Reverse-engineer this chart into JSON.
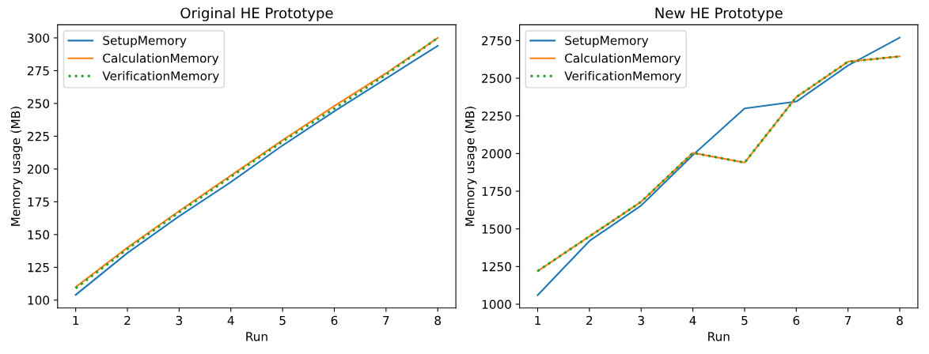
{
  "chart_data": [
    {
      "type": "line",
      "title": "Original HE Prototype",
      "xlabel": "Run",
      "ylabel": "Memory usage (MB)",
      "x": [
        1,
        2,
        3,
        4,
        5,
        6,
        7,
        8
      ],
      "xlim": [
        0.65,
        8.35
      ],
      "xticks": [
        1,
        2,
        3,
        4,
        5,
        6,
        7,
        8
      ],
      "ylim": [
        94,
        310
      ],
      "yticks": [
        100,
        125,
        150,
        175,
        200,
        225,
        250,
        275,
        300
      ],
      "legend": "top left",
      "grid": false,
      "series": [
        {
          "name": "SetupMemory",
          "color": "#1f77b4",
          "line_style": "solid",
          "values": [
            104,
            136,
            164,
            190,
            218,
            244,
            269,
            294
          ]
        },
        {
          "name": "CalculationMemory",
          "color": "#ff7f0e",
          "line_style": "solid",
          "values": [
            110,
            140,
            168,
            195,
            222,
            248,
            273,
            300
          ]
        },
        {
          "name": "VerificationMemory",
          "color": "#2ca02c",
          "line_style": "dotted",
          "values": [
            109,
            139,
            167,
            194,
            221,
            246,
            272,
            300
          ]
        }
      ]
    },
    {
      "type": "line",
      "title": "New HE Prototype",
      "xlabel": "Run",
      "ylabel": "Memory usage (MB)",
      "x": [
        1,
        2,
        3,
        4,
        5,
        6,
        7,
        8
      ],
      "xlim": [
        0.65,
        8.35
      ],
      "xticks": [
        1,
        2,
        3,
        4,
        5,
        6,
        7,
        8
      ],
      "ylim": [
        975,
        2855
      ],
      "yticks": [
        1000,
        1250,
        1500,
        1750,
        2000,
        2250,
        2500,
        2750
      ],
      "legend": "top left",
      "grid": false,
      "series": [
        {
          "name": "SetupMemory",
          "color": "#1f77b4",
          "line_style": "solid",
          "values": [
            1060,
            1420,
            1655,
            1990,
            2300,
            2345,
            2585,
            2770
          ]
        },
        {
          "name": "CalculationMemory",
          "color": "#ff7f0e",
          "line_style": "solid",
          "values": [
            1220,
            1450,
            1680,
            2005,
            1940,
            2375,
            2610,
            2645
          ]
        },
        {
          "name": "VerificationMemory",
          "color": "#2ca02c",
          "line_style": "dotted",
          "values": [
            1220,
            1450,
            1680,
            2005,
            1940,
            2375,
            2610,
            2645
          ]
        }
      ]
    }
  ]
}
